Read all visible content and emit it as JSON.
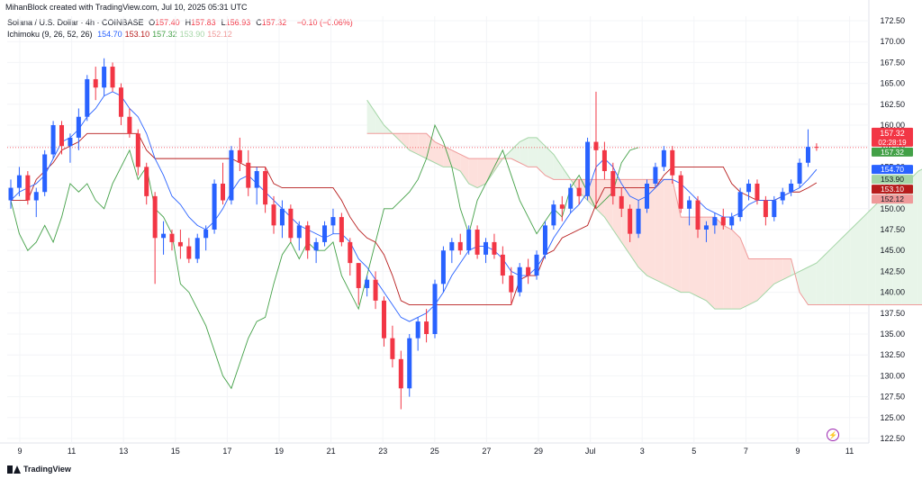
{
  "header": {
    "attribution": "MihanBlock created with TradingView.com, Jul 10, 2025 05:31 UTC"
  },
  "legend": {
    "symbol": "Solana / U.S. Dollar · 4h · COINBASE",
    "ohlc": [
      {
        "label": "O",
        "value": "157.40"
      },
      {
        "label": "H",
        "value": "157.83"
      },
      {
        "label": "L",
        "value": "156.93"
      },
      {
        "label": "C",
        "value": "157.32"
      }
    ],
    "change": "−0.10 (−0.06%)",
    "indicator_name": "Ichimoku (9, 26, 52, 26)",
    "indicator_values": [
      {
        "value": "154.70",
        "color": "#2962ff"
      },
      {
        "value": "153.10",
        "color": "#b71c1c"
      },
      {
        "value": "157.32",
        "color": "#43a047"
      },
      {
        "value": "153.90",
        "color": "#a5d6a7"
      },
      {
        "value": "152.12",
        "color": "#ef9a9a"
      }
    ]
  },
  "footer": {
    "brand": "TradingView"
  },
  "colors": {
    "up": "#2962ff",
    "down": "#f23645",
    "tenkan": "#2962ff",
    "kijun": "#b71c1c",
    "chikou": "#43a047",
    "cloud_bull": "#e8f5e9",
    "cloud_bear": "#fde0dc",
    "span_a": "#a5d6a7",
    "span_b": "#ef9a9a"
  },
  "chart_data": {
    "type": "candlestick",
    "instrument": "Solana / U.S. Dollar",
    "interval": "4h",
    "exchange": "COINBASE",
    "ylim": [
      122.5,
      172.5
    ],
    "y_ticks": [
      "172.50",
      "170.00",
      "167.50",
      "165.00",
      "162.50",
      "160.00",
      "157.50",
      "155.00",
      "152.50",
      "150.00",
      "147.50",
      "145.00",
      "142.50",
      "140.00",
      "137.50",
      "135.00",
      "132.50",
      "130.00",
      "127.50",
      "125.00",
      "122.50"
    ],
    "x_ticks": [
      "9",
      "11",
      "13",
      "15",
      "17",
      "19",
      "21",
      "23",
      "25",
      "27",
      "29",
      "Jul",
      "3",
      "5",
      "7",
      "9",
      "11"
    ],
    "current_price_label": {
      "price": "157.32",
      "countdown": "02:28:19"
    },
    "price_labels": [
      {
        "value": "157.32",
        "color": "#43a047"
      },
      {
        "value": "154.70",
        "color": "#2962ff"
      },
      {
        "value": "153.90",
        "color": "#a5d6a7"
      },
      {
        "value": "153.10",
        "color": "#b71c1c"
      },
      {
        "value": "152.12",
        "color": "#ef9a9a"
      }
    ],
    "candles": [
      [
        151.0,
        153.5,
        150.0,
        152.5
      ],
      [
        152.5,
        155.0,
        151.5,
        154.0
      ],
      [
        154.0,
        154.5,
        150.5,
        151.0
      ],
      [
        151.0,
        152.5,
        149.0,
        152.0
      ],
      [
        152.0,
        157.0,
        151.5,
        156.5
      ],
      [
        156.5,
        160.5,
        156.0,
        160.0
      ],
      [
        160.0,
        160.5,
        156.5,
        157.5
      ],
      [
        157.5,
        159.0,
        155.5,
        158.5
      ],
      [
        158.5,
        162.0,
        157.0,
        161.0
      ],
      [
        161.0,
        166.0,
        160.5,
        165.5
      ],
      [
        165.5,
        167.0,
        163.0,
        164.5
      ],
      [
        164.5,
        168.0,
        163.5,
        167.0
      ],
      [
        167.0,
        167.5,
        164.0,
        164.5
      ],
      [
        164.5,
        165.0,
        160.0,
        161.0
      ],
      [
        161.0,
        162.0,
        158.5,
        159.0
      ],
      [
        159.0,
        159.5,
        154.0,
        155.0
      ],
      [
        155.0,
        155.5,
        150.5,
        151.5
      ],
      [
        151.5,
        152.0,
        141.0,
        146.5
      ],
      [
        146.5,
        148.5,
        144.5,
        147.0
      ],
      [
        147.0,
        147.5,
        145.0,
        146.0
      ],
      [
        146.0,
        147.5,
        144.0,
        145.5
      ],
      [
        145.5,
        146.5,
        143.5,
        144.0
      ],
      [
        144.0,
        147.0,
        143.5,
        146.5
      ],
      [
        146.5,
        148.0,
        145.0,
        147.5
      ],
      [
        147.5,
        153.5,
        147.0,
        153.0
      ],
      [
        153.0,
        155.5,
        150.5,
        151.0
      ],
      [
        151.0,
        157.5,
        150.5,
        157.0
      ],
      [
        157.0,
        158.5,
        154.5,
        155.5
      ],
      [
        155.5,
        157.0,
        151.5,
        152.5
      ],
      [
        152.5,
        155.0,
        150.5,
        154.5
      ],
      [
        154.5,
        155.0,
        149.5,
        150.5
      ],
      [
        150.5,
        151.5,
        147.0,
        148.0
      ],
      [
        148.0,
        151.0,
        146.5,
        150.0
      ],
      [
        150.0,
        150.5,
        146.0,
        146.5
      ],
      [
        146.5,
        148.5,
        145.0,
        148.0
      ],
      [
        148.0,
        148.5,
        144.0,
        145.0
      ],
      [
        145.0,
        146.5,
        143.5,
        146.0
      ],
      [
        146.0,
        148.5,
        145.5,
        148.0
      ],
      [
        148.0,
        150.0,
        147.0,
        149.0
      ],
      [
        149.0,
        149.5,
        145.5,
        146.0
      ],
      [
        146.0,
        146.5,
        142.0,
        143.5
      ],
      [
        143.5,
        143.5,
        138.5,
        140.5
      ],
      [
        140.5,
        142.0,
        139.5,
        141.5
      ],
      [
        141.5,
        142.5,
        138.0,
        139.0
      ],
      [
        139.0,
        139.5,
        133.5,
        134.5
      ],
      [
        134.5,
        136.0,
        131.0,
        132.0
      ],
      [
        132.0,
        133.0,
        126.0,
        128.5
      ],
      [
        128.5,
        135.0,
        127.5,
        134.5
      ],
      [
        134.5,
        137.0,
        133.0,
        136.5
      ],
      [
        136.5,
        138.0,
        134.0,
        135.0
      ],
      [
        135.0,
        141.5,
        134.5,
        141.0
      ],
      [
        141.0,
        145.5,
        140.0,
        145.0
      ],
      [
        145.0,
        146.5,
        143.5,
        146.0
      ],
      [
        146.0,
        147.0,
        144.5,
        145.0
      ],
      [
        145.0,
        148.0,
        144.5,
        147.5
      ],
      [
        147.5,
        148.0,
        144.0,
        144.5
      ],
      [
        144.5,
        146.5,
        143.5,
        146.0
      ],
      [
        146.0,
        147.0,
        144.0,
        144.5
      ],
      [
        144.5,
        145.5,
        141.0,
        142.0
      ],
      [
        142.0,
        143.0,
        138.5,
        140.0
      ],
      [
        140.0,
        143.5,
        139.5,
        143.0
      ],
      [
        143.0,
        144.0,
        141.0,
        142.0
      ],
      [
        142.0,
        145.0,
        141.5,
        144.5
      ],
      [
        144.5,
        148.5,
        144.0,
        148.0
      ],
      [
        148.0,
        151.0,
        147.5,
        150.5
      ],
      [
        150.5,
        151.5,
        148.5,
        150.0
      ],
      [
        150.0,
        153.0,
        149.5,
        152.5
      ],
      [
        152.5,
        153.5,
        150.5,
        151.5
      ],
      [
        151.5,
        158.5,
        151.0,
        158.0
      ],
      [
        158.0,
        164.0,
        150.0,
        157.0
      ],
      [
        157.0,
        158.0,
        153.5,
        154.5
      ],
      [
        154.5,
        155.5,
        150.5,
        151.5
      ],
      [
        151.5,
        152.5,
        149.0,
        150.0
      ],
      [
        150.0,
        150.5,
        146.0,
        147.0
      ],
      [
        147.0,
        151.0,
        146.5,
        150.0
      ],
      [
        150.0,
        153.5,
        149.5,
        153.0
      ],
      [
        153.0,
        155.5,
        152.5,
        155.0
      ],
      [
        155.0,
        157.5,
        154.5,
        157.0
      ],
      [
        157.0,
        157.5,
        153.0,
        154.0
      ],
      [
        154.0,
        154.5,
        149.5,
        150.0
      ],
      [
        150.0,
        151.5,
        148.0,
        151.0
      ],
      [
        151.0,
        151.5,
        146.5,
        147.5
      ],
      [
        147.5,
        148.5,
        146.0,
        148.0
      ],
      [
        148.0,
        149.5,
        147.0,
        149.0
      ],
      [
        149.0,
        150.0,
        147.5,
        148.0
      ],
      [
        148.0,
        149.5,
        147.5,
        149.0
      ],
      [
        149.0,
        152.5,
        148.5,
        152.0
      ],
      [
        152.0,
        153.5,
        151.0,
        153.0
      ],
      [
        153.0,
        153.5,
        150.5,
        151.0
      ],
      [
        151.0,
        151.5,
        148.0,
        149.0
      ],
      [
        149.0,
        151.5,
        148.5,
        151.0
      ],
      [
        151.0,
        152.5,
        150.5,
        152.0
      ],
      [
        152.0,
        153.5,
        151.5,
        153.0
      ],
      [
        153.0,
        156.0,
        152.5,
        155.5
      ],
      [
        155.5,
        159.5,
        155.0,
        157.4
      ],
      [
        157.4,
        157.83,
        156.93,
        157.32
      ]
    ],
    "tenkan": [
      151.0,
      152.0,
      152.5,
      153.0,
      154.0,
      156.0,
      158.0,
      158.5,
      159.5,
      161.0,
      162.0,
      163.5,
      164.0,
      163.5,
      162.0,
      161.0,
      159.0,
      156.0,
      154.0,
      151.5,
      150.5,
      149.0,
      148.0,
      147.5,
      148.5,
      150.0,
      152.0,
      153.5,
      154.0,
      153.0,
      152.0,
      151.0,
      150.0,
      149.0,
      148.0,
      147.5,
      147.0,
      146.5,
      147.0,
      147.0,
      146.0,
      144.0,
      143.0,
      141.5,
      140.0,
      138.5,
      137.0,
      136.5,
      137.0,
      137.5,
      138.5,
      140.0,
      142.0,
      143.5,
      145.0,
      145.5,
      145.5,
      145.0,
      144.0,
      142.5,
      142.0,
      142.0,
      143.0,
      144.5,
      146.5,
      148.0,
      149.5,
      150.5,
      152.0,
      155.0,
      156.0,
      155.0,
      153.0,
      151.5,
      151.0,
      151.5,
      152.5,
      153.5,
      153.5,
      153.0,
      152.0,
      151.0,
      150.0,
      149.5,
      149.0,
      149.0,
      149.5,
      150.5,
      151.0,
      151.0,
      151.0,
      151.5,
      152.0,
      152.5,
      153.5,
      154.7
    ],
    "kijun": [
      151.0,
      151.0,
      151.0,
      153.5,
      154.5,
      155.5,
      157.0,
      157.5,
      158.0,
      159.0,
      159.0,
      159.0,
      159.0,
      159.0,
      159.0,
      159.0,
      157.0,
      156.0,
      156.0,
      156.0,
      156.0,
      156.0,
      156.0,
      156.0,
      156.0,
      156.0,
      156.0,
      155.5,
      155.0,
      155.0,
      155.0,
      153.0,
      152.5,
      152.5,
      152.5,
      152.5,
      152.5,
      152.5,
      152.5,
      151.0,
      149.0,
      147.5,
      146.5,
      146.0,
      144.5,
      142.0,
      139.0,
      138.5,
      138.5,
      138.5,
      138.5,
      138.5,
      138.5,
      138.5,
      138.5,
      138.5,
      138.5,
      138.5,
      138.5,
      138.5,
      141.5,
      142.0,
      142.0,
      144.5,
      145.0,
      146.5,
      147.0,
      147.5,
      148.0,
      150.5,
      152.5,
      152.5,
      152.5,
      152.5,
      152.5,
      152.5,
      152.5,
      154.0,
      155.0,
      155.0,
      155.0,
      155.0,
      155.0,
      155.0,
      155.0,
      153.0,
      152.0,
      151.5,
      151.0,
      151.0,
      151.0,
      151.5,
      152.0,
      152.0,
      152.5,
      153.1
    ],
    "chikou": [
      151.0,
      147.0,
      145.0,
      146.0,
      148.0,
      146.0,
      149.0,
      153.0,
      152.0,
      153.0,
      151.0,
      150.0,
      153.0,
      155.0,
      157.0,
      153.5,
      155.0,
      150.0,
      149.0,
      147.0,
      141.0,
      140.0,
      138.0,
      136.0,
      133.0,
      130.0,
      128.5,
      131.5,
      134.5,
      136.5,
      137.0,
      141.0,
      144.5,
      146.0,
      144.0,
      146.0,
      145.0,
      145.0,
      146.0,
      142.0,
      140.0,
      138.0,
      142.0,
      146.0,
      150.0,
      150.0,
      151.0,
      152.0,
      153.5,
      156.0,
      160.0,
      158.0,
      155.0,
      150.0,
      147.0,
      151.0,
      153.0,
      155.0,
      157.0,
      154.0,
      151.0,
      149.0,
      147.0,
      148.5,
      150.0,
      149.0,
      152.5,
      154.0,
      152.0,
      150.0,
      151.0,
      152.0,
      155.5,
      157.0,
      157.32
    ],
    "span_a": [
      163.0,
      161.5,
      160.0,
      159.0,
      158.0,
      157.0,
      156.5,
      156.0,
      155.5,
      155.0,
      155.0,
      154.5,
      153.0,
      152.5,
      153.0,
      154.5,
      156.0,
      157.0,
      158.0,
      158.5,
      158.5,
      157.5,
      156.5,
      155.0,
      153.5,
      152.0,
      151.0,
      150.0,
      149.0,
      147.5,
      146.0,
      144.5,
      143.0,
      142.0,
      141.5,
      141.0,
      140.5,
      140.0,
      140.0,
      139.5,
      139.0,
      138.0,
      138.0,
      138.0,
      138.0,
      138.5,
      139.0,
      140.0,
      141.0,
      141.5,
      142.0,
      142.5,
      143.0,
      143.5,
      144.5,
      145.5,
      146.5,
      147.5,
      148.5,
      149.5,
      150.5,
      151.5,
      152.5,
      153.0,
      153.5,
      154.5,
      155.0,
      154.5,
      153.5,
      153.0,
      152.5,
      152.0,
      151.5,
      151.5,
      151.5,
      152.0,
      152.5,
      153.0,
      153.5,
      153.9
    ],
    "span_b": [
      159.0,
      159.0,
      159.0,
      159.0,
      159.0,
      159.0,
      159.0,
      159.0,
      158.0,
      157.5,
      157.0,
      156.5,
      156.0,
      156.0,
      156.0,
      156.0,
      156.0,
      156.0,
      155.5,
      155.0,
      155.0,
      154.0,
      153.5,
      153.5,
      153.5,
      153.5,
      153.5,
      153.5,
      153.5,
      153.5,
      153.5,
      153.5,
      153.5,
      153.5,
      153.5,
      153.5,
      153.5,
      149.0,
      149.0,
      149.0,
      149.0,
      149.0,
      148.0,
      147.5,
      146.5,
      144.0,
      144.0,
      144.0,
      144.0,
      144.0,
      144.0,
      140.0,
      138.5,
      138.5,
      138.5,
      138.5,
      138.5,
      138.5,
      138.5,
      138.5,
      138.5,
      138.5,
      138.5,
      138.5,
      138.5,
      138.5,
      138.5,
      138.5,
      138.5,
      146.0,
      148.0,
      148.5,
      149.0,
      149.5,
      150.0,
      150.5,
      151.0,
      151.5,
      151.8,
      152.12
    ]
  }
}
